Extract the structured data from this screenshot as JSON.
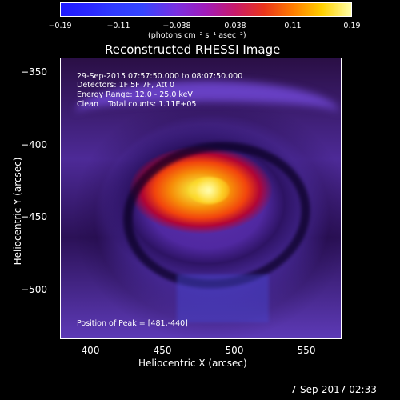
{
  "colorbar": {
    "ticks": [
      "−0.19",
      "−0.11",
      "−0.038",
      "0.038",
      "0.11",
      "0.19"
    ],
    "units": "(photons cm⁻² s⁻¹ asec⁻²)"
  },
  "title": "Reconstructed RHESSI Image",
  "info": {
    "line1": "29-Sep-2015 07:57:50.000 to 08:07:50.000",
    "line2": "Detectors: 1F 5F 7F, Att 0",
    "line3": "Energy Range: 12.0 - 25.0 keV",
    "line4": "Clean    Total counts: 1.11E+05",
    "peak": "Position of Peak = [481,-440]"
  },
  "axes": {
    "x_label": "Heliocentric X (arcsec)",
    "y_label": "Heliocentric Y (arcsec)",
    "x_ticks": [
      "400",
      "450",
      "500",
      "550"
    ],
    "y_ticks": [
      "−350",
      "−400",
      "−450",
      "−500"
    ]
  },
  "footer": {
    "timestamp": "7-Sep-2017 02:33"
  }
}
